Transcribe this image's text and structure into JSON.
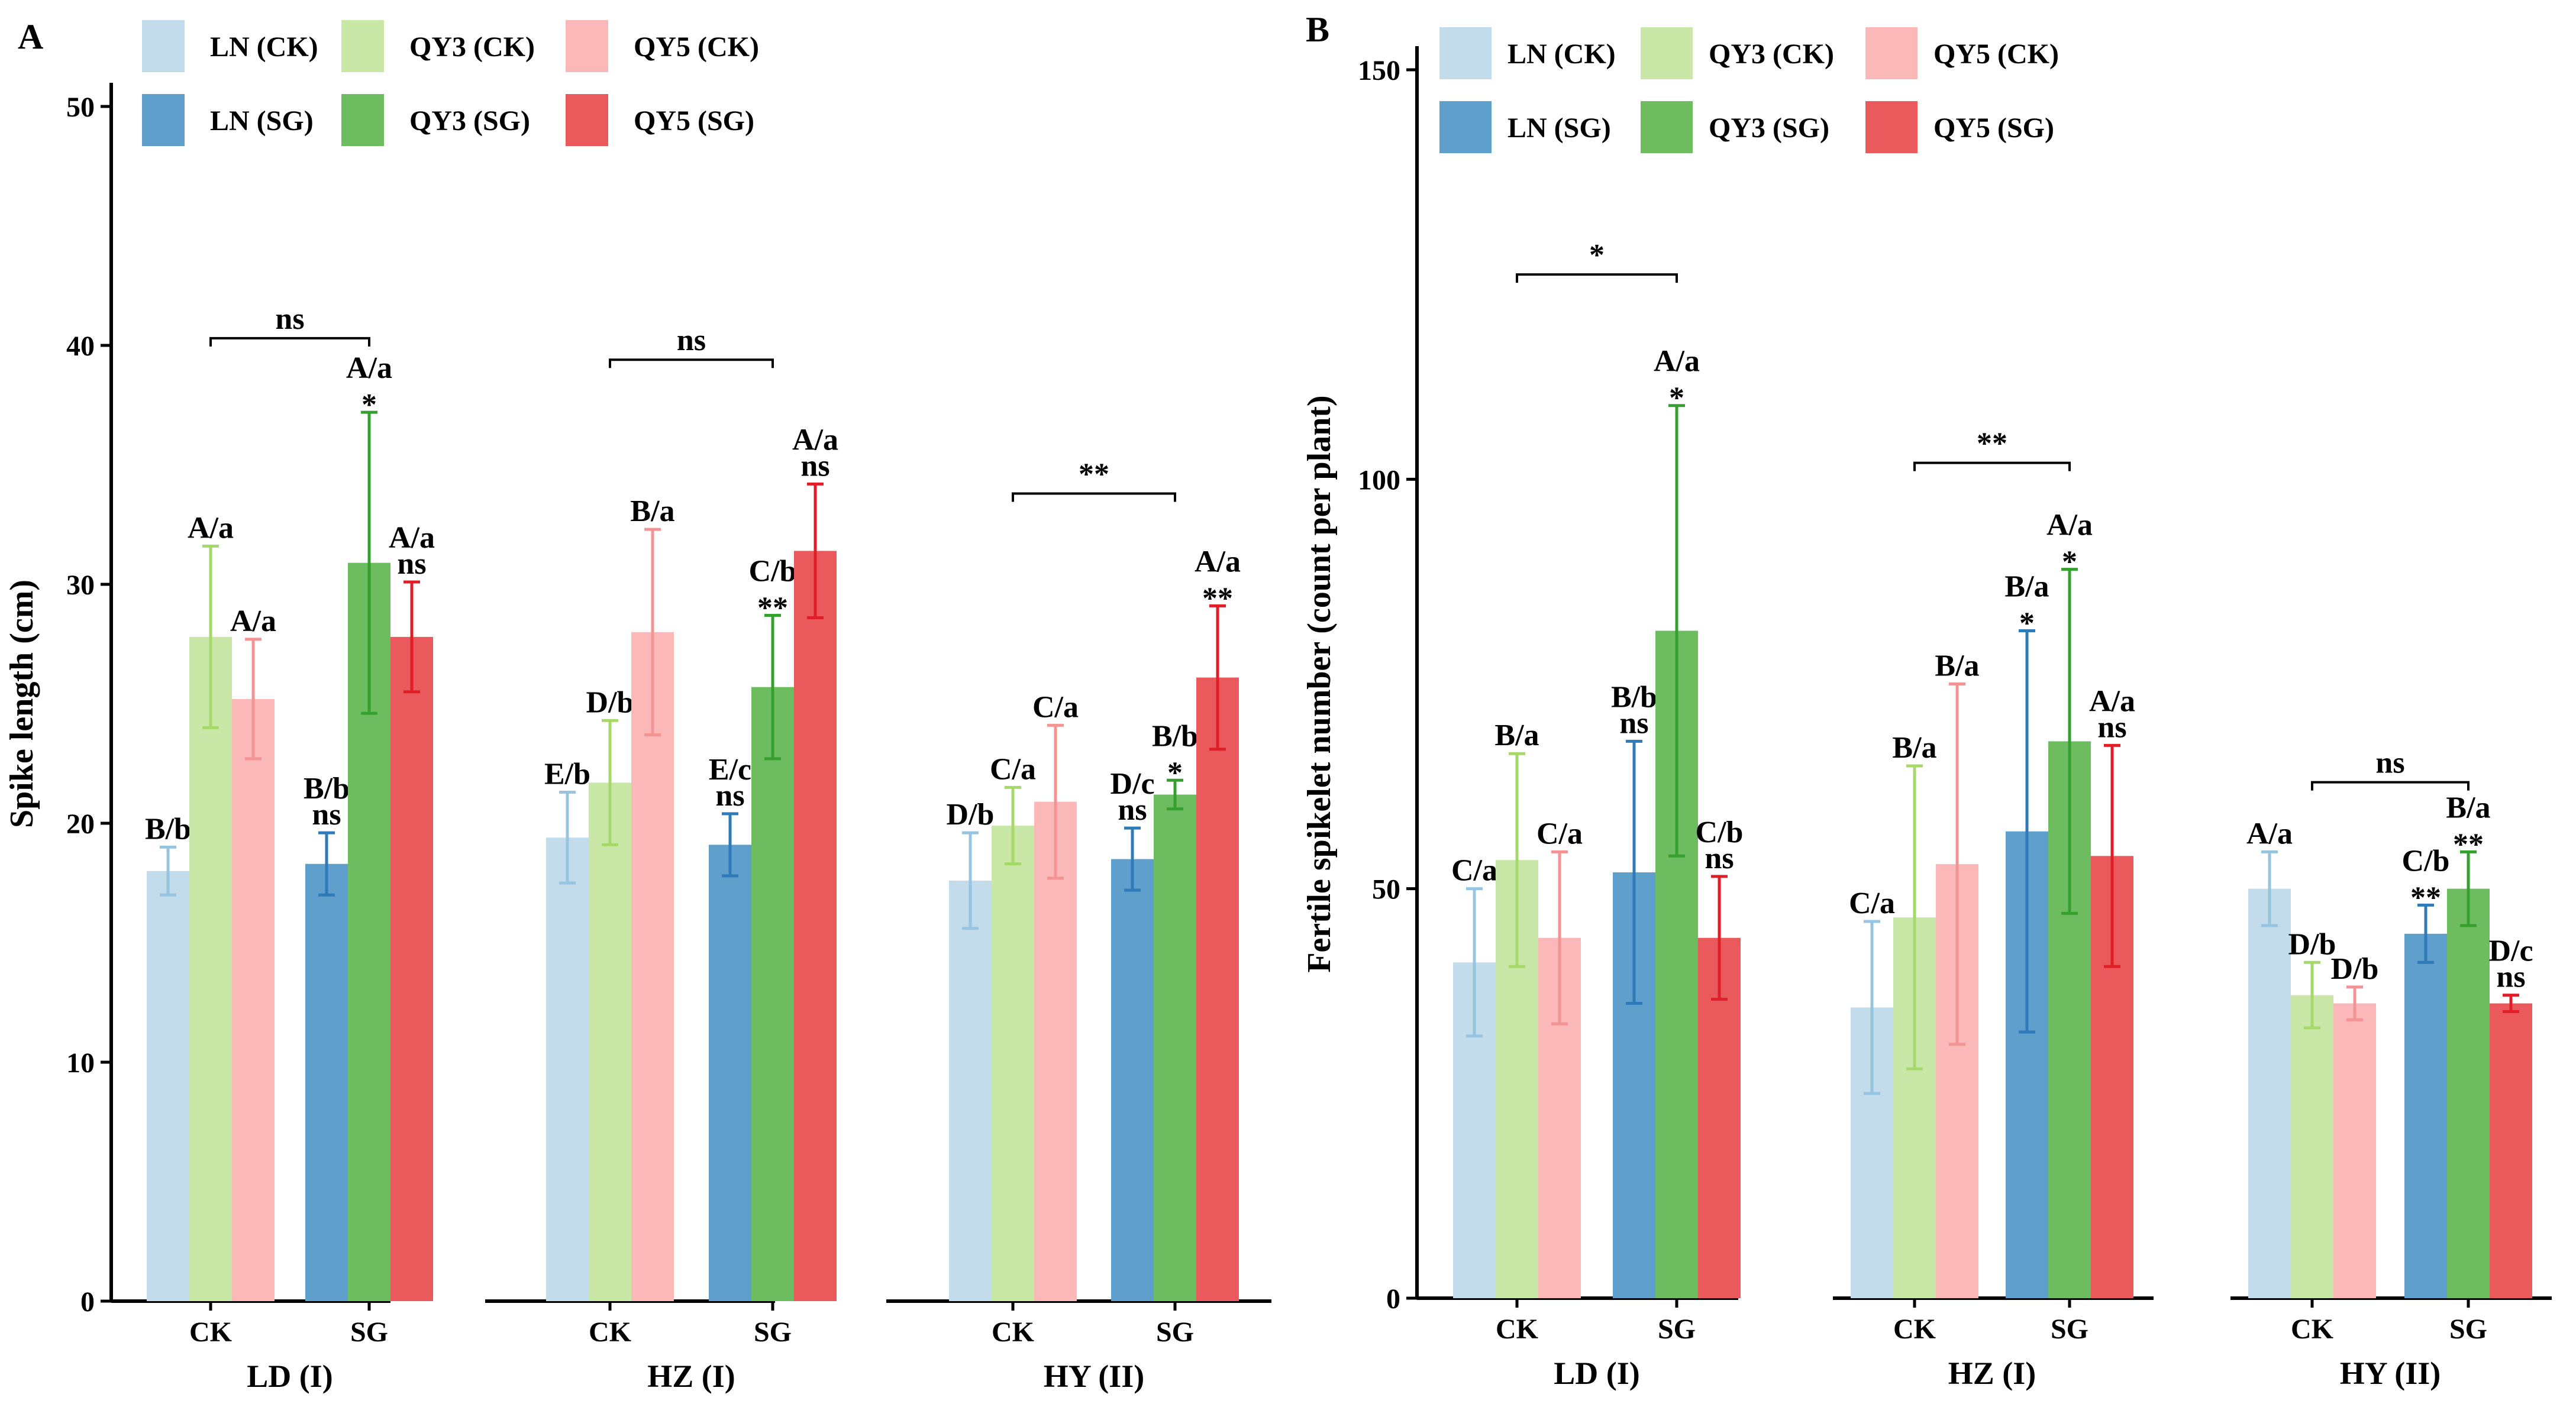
{
  "chart_data": [
    {
      "panel_label": "A",
      "type": "bar",
      "ylabel": "Spike length (cm)",
      "ylim": [
        0,
        50
      ],
      "yticks": [
        "0",
        "10",
        "20",
        "30",
        "40",
        "50"
      ],
      "legend": {
        "placement": "top-left",
        "entries": [
          {
            "label": "LN (CK)",
            "color": "#c2dcec"
          },
          {
            "label": "QY3 (CK)",
            "color": "#c9e8a8"
          },
          {
            "label": "QY5 (CK)",
            "color": "#fbb8b8"
          },
          {
            "label": "LN (SG)",
            "color": "#5f9fcc"
          },
          {
            "label": "QY3 (SG)",
            "color": "#6dbd60"
          },
          {
            "label": "QY5 (SG)",
            "color": "#ea5a5c"
          }
        ]
      },
      "groups": [
        {
          "name": "LD (I)",
          "treatments": [
            {
              "label": "CK",
              "bars": [
                {
                  "series": 0,
                  "value": 18.0,
                  "err": 1.0,
                  "ann": "B/b",
                  "sig": ""
                },
                {
                  "series": 1,
                  "value": 27.8,
                  "err": 3.8,
                  "ann": "A/a",
                  "sig": ""
                },
                {
                  "series": 2,
                  "value": 25.2,
                  "err": 2.5,
                  "ann": "A/a",
                  "sig": ""
                }
              ]
            },
            {
              "label": "SG",
              "bars": [
                {
                  "series": 3,
                  "value": 18.3,
                  "err": 1.3,
                  "ann": "B/b",
                  "sig": "ns"
                },
                {
                  "series": 4,
                  "value": 30.9,
                  "err": 6.3,
                  "ann": "A/a",
                  "sig": "*"
                },
                {
                  "series": 5,
                  "value": 27.8,
                  "err": 2.3,
                  "ann": "A/a",
                  "sig": "ns"
                }
              ]
            }
          ],
          "bracket": {
            "label": "ns",
            "value": 40.3
          }
        },
        {
          "name": "HZ (I)",
          "treatments": [
            {
              "label": "CK",
              "bars": [
                {
                  "series": 0,
                  "value": 19.4,
                  "err": 1.9,
                  "ann": "E/b",
                  "sig": ""
                },
                {
                  "series": 1,
                  "value": 21.7,
                  "err": 2.6,
                  "ann": "D/b",
                  "sig": ""
                },
                {
                  "series": 2,
                  "value": 28.0,
                  "err": 4.3,
                  "ann": "B/a",
                  "sig": ""
                }
              ]
            },
            {
              "label": "SG",
              "bars": [
                {
                  "series": 3,
                  "value": 19.1,
                  "err": 1.3,
                  "ann": "E/c",
                  "sig": "ns"
                },
                {
                  "series": 4,
                  "value": 25.7,
                  "err": 3.0,
                  "ann": "C/b",
                  "sig": "**"
                },
                {
                  "series": 5,
                  "value": 31.4,
                  "err": 2.8,
                  "ann": "A/a",
                  "sig": "ns"
                }
              ]
            }
          ],
          "bracket": {
            "label": "ns",
            "value": 39.4
          }
        },
        {
          "name": "HY (II)",
          "treatments": [
            {
              "label": "CK",
              "bars": [
                {
                  "series": 0,
                  "value": 17.6,
                  "err": 2.0,
                  "ann": "D/b",
                  "sig": ""
                },
                {
                  "series": 1,
                  "value": 19.9,
                  "err": 1.6,
                  "ann": "C/a",
                  "sig": ""
                },
                {
                  "series": 2,
                  "value": 20.9,
                  "err": 3.2,
                  "ann": "C/a",
                  "sig": ""
                }
              ]
            },
            {
              "label": "SG",
              "bars": [
                {
                  "series": 3,
                  "value": 18.5,
                  "err": 1.3,
                  "ann": "D/c",
                  "sig": "ns"
                },
                {
                  "series": 4,
                  "value": 21.2,
                  "err": 0.6,
                  "ann": "B/b",
                  "sig": "*"
                },
                {
                  "series": 5,
                  "value": 26.1,
                  "err": 3.0,
                  "ann": "A/a",
                  "sig": "**"
                }
              ]
            }
          ],
          "bracket": {
            "label": "**",
            "value": 33.8
          }
        }
      ]
    },
    {
      "panel_label": "B",
      "type": "bar",
      "ylabel": "Fertile spikelet number (count per plant)",
      "ylim": [
        0,
        150
      ],
      "yticks": [
        "0",
        "50",
        "100",
        "150"
      ],
      "legend": {
        "placement": "top-left",
        "entries": [
          {
            "label": "LN (CK)",
            "color": "#c2dcec"
          },
          {
            "label": "QY3 (CK)",
            "color": "#c9e8a8"
          },
          {
            "label": "QY5 (CK)",
            "color": "#fbb8b8"
          },
          {
            "label": "LN (SG)",
            "color": "#5f9fcc"
          },
          {
            "label": "QY3 (SG)",
            "color": "#6dbd60"
          },
          {
            "label": "QY5 (SG)",
            "color": "#ea5a5c"
          }
        ]
      },
      "groups": [
        {
          "name": "LD (I)",
          "treatments": [
            {
              "label": "CK",
              "bars": [
                {
                  "series": 0,
                  "value": 41.0,
                  "err": 9.0,
                  "ann": "C/a",
                  "sig": ""
                },
                {
                  "series": 1,
                  "value": 53.5,
                  "err": 13.0,
                  "ann": "B/a",
                  "sig": ""
                },
                {
                  "series": 2,
                  "value": 44.0,
                  "err": 10.5,
                  "ann": "C/a",
                  "sig": ""
                }
              ]
            },
            {
              "label": "SG",
              "bars": [
                {
                  "series": 3,
                  "value": 52.0,
                  "err": 16.0,
                  "ann": "B/b",
                  "sig": "ns"
                },
                {
                  "series": 4,
                  "value": 81.5,
                  "err": 27.5,
                  "ann": "A/a",
                  "sig": "*"
                },
                {
                  "series": 5,
                  "value": 44.0,
                  "err": 7.5,
                  "ann": "C/b",
                  "sig": "ns"
                }
              ]
            }
          ],
          "bracket": {
            "label": "*",
            "value": 125.0
          }
        },
        {
          "name": "HZ (I)",
          "treatments": [
            {
              "label": "CK",
              "bars": [
                {
                  "series": 0,
                  "value": 35.5,
                  "err": 10.5,
                  "ann": "C/a",
                  "sig": ""
                },
                {
                  "series": 1,
                  "value": 46.5,
                  "err": 18.5,
                  "ann": "B/a",
                  "sig": ""
                },
                {
                  "series": 2,
                  "value": 53.0,
                  "err": 22.0,
                  "ann": "B/a",
                  "sig": ""
                }
              ]
            },
            {
              "label": "SG",
              "bars": [
                {
                  "series": 3,
                  "value": 57.0,
                  "err": 24.5,
                  "ann": "B/a",
                  "sig": "*"
                },
                {
                  "series": 4,
                  "value": 68.0,
                  "err": 21.0,
                  "ann": "A/a",
                  "sig": "*"
                },
                {
                  "series": 5,
                  "value": 54.0,
                  "err": 13.5,
                  "ann": "A/a",
                  "sig": "ns"
                }
              ]
            }
          ],
          "bracket": {
            "label": "**",
            "value": 102.0
          }
        },
        {
          "name": "HY (II)",
          "treatments": [
            {
              "label": "CK",
              "bars": [
                {
                  "series": 0,
                  "value": 50.0,
                  "err": 4.5,
                  "ann": "A/a",
                  "sig": ""
                },
                {
                  "series": 1,
                  "value": 37.0,
                  "err": 4.0,
                  "ann": "D/b",
                  "sig": ""
                },
                {
                  "series": 2,
                  "value": 36.0,
                  "err": 2.0,
                  "ann": "D/b",
                  "sig": ""
                }
              ]
            },
            {
              "label": "SG",
              "bars": [
                {
                  "series": 3,
                  "value": 44.5,
                  "err": 3.5,
                  "ann": "C/b",
                  "sig": "**"
                },
                {
                  "series": 4,
                  "value": 50.0,
                  "err": 4.5,
                  "ann": "B/a",
                  "sig": "**"
                },
                {
                  "series": 5,
                  "value": 36.0,
                  "err": 1.0,
                  "ann": "D/c",
                  "sig": "ns"
                }
              ]
            }
          ],
          "bracket": {
            "label": "ns",
            "value": 63.0
          }
        }
      ]
    }
  ]
}
